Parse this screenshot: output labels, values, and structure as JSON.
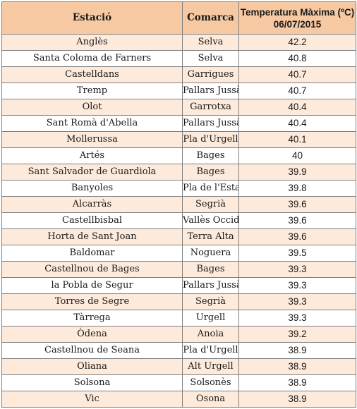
{
  "table": {
    "headers": {
      "station": "Estació",
      "county": "Comarca",
      "temp_line1": "Temperatura Màxima (ºC)",
      "temp_line2": "06/07/2015"
    },
    "colors": {
      "header_bg": "#f7c9a2",
      "row_odd_bg": "#fdeadb",
      "row_even_bg": "#ffffff",
      "border": "#7f7f7f"
    },
    "rows": [
      {
        "station": "Anglès",
        "county": "Selva",
        "temp": "42.2"
      },
      {
        "station": "Santa Coloma de Farners",
        "county": "Selva",
        "temp": "40.8"
      },
      {
        "station": "Castelldans",
        "county": "Garrigues",
        "temp": "40.7"
      },
      {
        "station": "Tremp",
        "county": "Pallars Jussà",
        "temp": "40.7"
      },
      {
        "station": "Olot",
        "county": "Garrotxa",
        "temp": "40.4"
      },
      {
        "station": "Sant Romà d'Abella",
        "county": "Pallars Jussà",
        "temp": "40.4"
      },
      {
        "station": "Mollerussa",
        "county": "Pla d'Urgell",
        "temp": "40.1"
      },
      {
        "station": "Artés",
        "county": "Bages",
        "temp": "40"
      },
      {
        "station": "Sant Salvador de Guardiola",
        "county": "Bages",
        "temp": "39.9"
      },
      {
        "station": "Banyoles",
        "county": "Pla de l'Estany",
        "temp": "39.8"
      },
      {
        "station": "Alcarràs",
        "county": "Segrià",
        "temp": "39.6"
      },
      {
        "station": "Castellbisbal",
        "county": "Vallès Occidental",
        "temp": "39.6"
      },
      {
        "station": "Horta de Sant Joan",
        "county": "Terra Alta",
        "temp": "39.6"
      },
      {
        "station": "Baldomar",
        "county": "Noguera",
        "temp": "39.5"
      },
      {
        "station": "Castellnou de Bages",
        "county": "Bages",
        "temp": "39.3"
      },
      {
        "station": "la Pobla de Segur",
        "county": "Pallars Jussà",
        "temp": "39.3"
      },
      {
        "station": "Torres de Segre",
        "county": "Segrià",
        "temp": "39.3"
      },
      {
        "station": "Tàrrega",
        "county": "Urgell",
        "temp": "39.3"
      },
      {
        "station": "Òdena",
        "county": "Anoia",
        "temp": "39.2"
      },
      {
        "station": "Castellnou de Seana",
        "county": "Pla d'Urgell",
        "temp": "38.9"
      },
      {
        "station": "Oliana",
        "county": "Alt Urgell",
        "temp": "38.9"
      },
      {
        "station": "Solsona",
        "county": "Solsonès",
        "temp": "38.9"
      },
      {
        "station": "Vic",
        "county": "Osona",
        "temp": "38.9"
      }
    ]
  }
}
